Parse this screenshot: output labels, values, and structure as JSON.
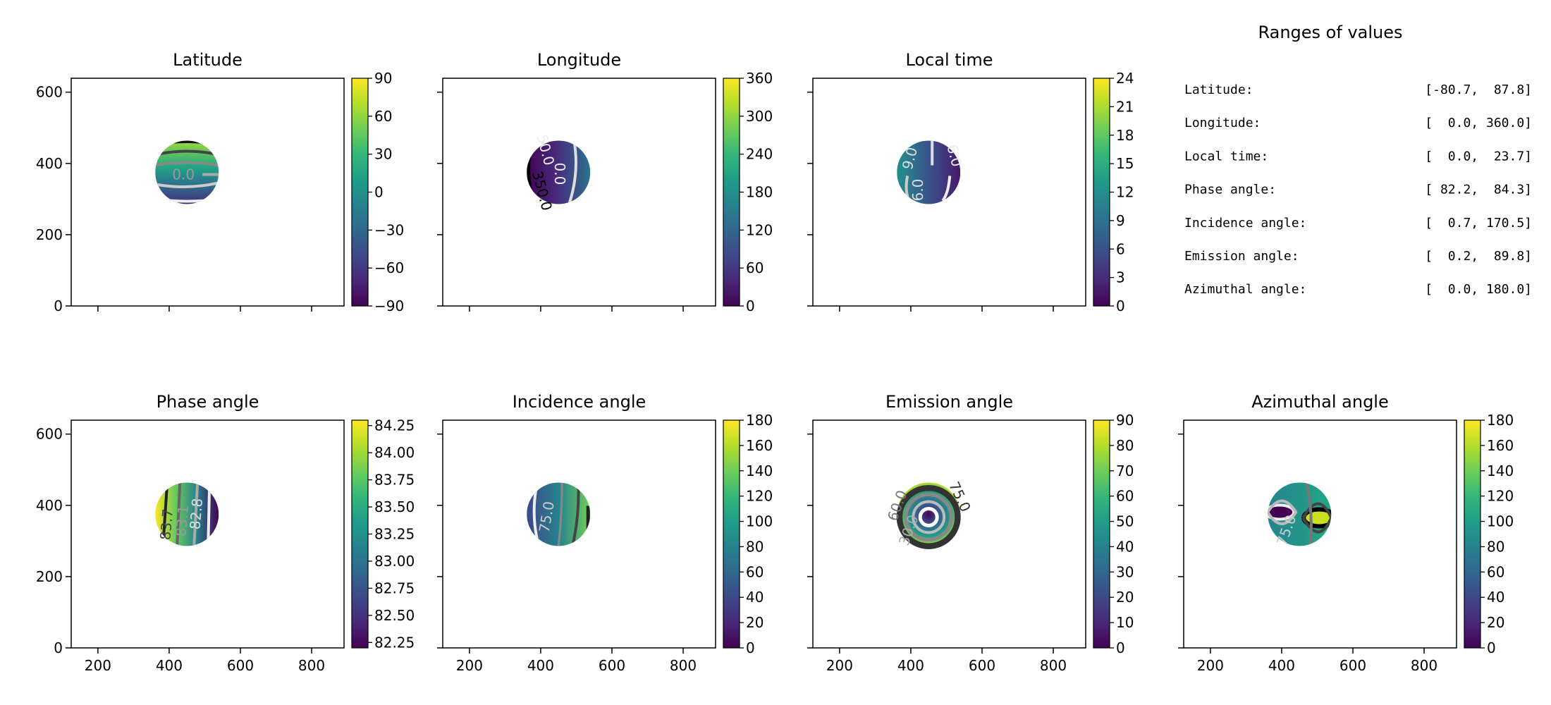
{
  "chart_data": [
    {
      "type": "heatmap",
      "title": "Latitude",
      "xlim": [
        125,
        891
      ],
      "ylim": [
        0,
        639
      ],
      "xticks": [
        "200",
        "400",
        "600",
        "800"
      ],
      "yticks": [
        "0",
        "200",
        "400",
        "600"
      ],
      "show_xticklabels": false,
      "show_yticklabels": true,
      "colorbar": {
        "range": [
          -90,
          90
        ],
        "ticks": [
          -90,
          -60,
          -30,
          0,
          30,
          60,
          90
        ],
        "tick_labels": [
          "−90",
          "−60",
          "−30",
          "0",
          "30",
          "60",
          "90"
        ]
      },
      "contour_labels": [
        "0.0"
      ]
    },
    {
      "type": "heatmap",
      "title": "Longitude",
      "xlim": [
        125,
        891
      ],
      "ylim": [
        0,
        639
      ],
      "xticks": [
        "200",
        "400",
        "600",
        "800"
      ],
      "yticks": [
        "0",
        "200",
        "400",
        "600"
      ],
      "show_xticklabels": false,
      "show_yticklabels": false,
      "colorbar": {
        "range": [
          0,
          360
        ],
        "ticks": [
          0,
          60,
          120,
          180,
          240,
          300,
          360
        ],
        "tick_labels": [
          "0",
          "60",
          "120",
          "180",
          "240",
          "300",
          "360"
        ]
      },
      "contour_labels": [
        "50.0",
        "0.0",
        "350.0"
      ]
    },
    {
      "type": "heatmap",
      "title": "Local time",
      "xlim": [
        125,
        891
      ],
      "ylim": [
        0,
        639
      ],
      "xticks": [
        "200",
        "400",
        "600",
        "800"
      ],
      "yticks": [
        "0",
        "200",
        "400",
        "600"
      ],
      "show_xticklabels": false,
      "show_yticklabels": false,
      "colorbar": {
        "range": [
          0,
          24
        ],
        "ticks": [
          0,
          3,
          6,
          9,
          12,
          15,
          18,
          21,
          24
        ],
        "tick_labels": [
          "0",
          "3",
          "6",
          "9",
          "12",
          "15",
          "18",
          "21",
          "24"
        ]
      },
      "contour_labels": [
        "9.0",
        "6.0",
        "6.0"
      ]
    },
    {
      "type": "heatmap",
      "title": "Phase angle",
      "xlim": [
        125,
        891
      ],
      "ylim": [
        0,
        639
      ],
      "xticks": [
        "200",
        "400",
        "600",
        "800"
      ],
      "yticks": [
        "0",
        "200",
        "400",
        "600"
      ],
      "show_xticklabels": true,
      "show_yticklabels": true,
      "colorbar": {
        "range": [
          82.2,
          84.3
        ],
        "ticks": [
          82.25,
          82.5,
          82.75,
          83.0,
          83.25,
          83.5,
          83.75,
          84.0,
          84.25
        ],
        "tick_labels": [
          "82.25",
          "82.50",
          "82.75",
          "83.00",
          "83.25",
          "83.50",
          "83.75",
          "84.00",
          "84.25"
        ]
      },
      "contour_labels": [
        "83.7",
        "83.1",
        "82.8"
      ]
    },
    {
      "type": "heatmap",
      "title": "Incidence angle",
      "xlim": [
        125,
        891
      ],
      "ylim": [
        0,
        639
      ],
      "xticks": [
        "200",
        "400",
        "600",
        "800"
      ],
      "yticks": [
        "0",
        "200",
        "400",
        "600"
      ],
      "show_xticklabels": true,
      "show_yticklabels": false,
      "colorbar": {
        "range": [
          0,
          180
        ],
        "ticks": [
          0,
          20,
          40,
          60,
          80,
          100,
          120,
          140,
          160,
          180
        ],
        "tick_labels": [
          "0",
          "20",
          "40",
          "60",
          "80",
          "100",
          "120",
          "140",
          "160",
          "180"
        ]
      },
      "contour_labels": [
        "75.0"
      ]
    },
    {
      "type": "heatmap",
      "title": "Emission angle",
      "xlim": [
        125,
        891
      ],
      "ylim": [
        0,
        639
      ],
      "xticks": [
        "200",
        "400",
        "600",
        "800"
      ],
      "yticks": [
        "0",
        "200",
        "400",
        "600"
      ],
      "show_xticklabels": true,
      "show_yticklabels": false,
      "colorbar": {
        "range": [
          0,
          90
        ],
        "ticks": [
          0,
          10,
          20,
          30,
          40,
          50,
          60,
          70,
          80,
          90
        ],
        "tick_labels": [
          "0",
          "10",
          "20",
          "30",
          "40",
          "50",
          "60",
          "70",
          "80",
          "90"
        ]
      },
      "contour_labels": [
        "60.0",
        "75.0",
        "30.0"
      ]
    },
    {
      "type": "heatmap",
      "title": "Azimuthal angle",
      "xlim": [
        125,
        891
      ],
      "ylim": [
        0,
        639
      ],
      "xticks": [
        "200",
        "400",
        "600",
        "800"
      ],
      "yticks": [
        "0",
        "200",
        "400",
        "600"
      ],
      "show_xticklabels": true,
      "show_yticklabels": false,
      "colorbar": {
        "range": [
          0,
          180
        ],
        "ticks": [
          0,
          20,
          40,
          60,
          80,
          100,
          120,
          140,
          160,
          180
        ],
        "tick_labels": [
          "0",
          "20",
          "40",
          "60",
          "80",
          "100",
          "120",
          "140",
          "160",
          "180"
        ]
      },
      "contour_labels": [
        "75.0"
      ]
    }
  ],
  "ranges_panel": {
    "title": "Ranges of values",
    "rows": [
      {
        "label": "Latitude:",
        "value": "[-80.7,  87.8]"
      },
      {
        "label": "Longitude:",
        "value": "[  0.0, 360.0]"
      },
      {
        "label": "Local time:",
        "value": "[  0.0,  23.7]"
      },
      {
        "label": "Phase angle:",
        "value": "[ 82.2,  84.3]"
      },
      {
        "label": "Incidence angle:",
        "value": "[  0.7, 170.5]"
      },
      {
        "label": "Emission angle:",
        "value": "[  0.2,  89.8]"
      },
      {
        "label": "Azimuthal angle:",
        "value": "[  0.0, 180.0]"
      }
    ]
  },
  "colormap": [
    "#440154",
    "#482878",
    "#3e4989",
    "#31688e",
    "#26828e",
    "#1f9e89",
    "#35b779",
    "#6ece58",
    "#b5de2b",
    "#fde725"
  ]
}
